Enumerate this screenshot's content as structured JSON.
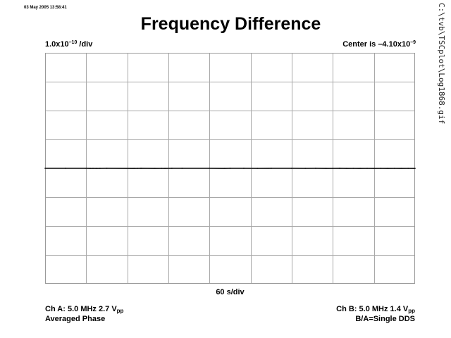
{
  "header": {
    "timestamp": "03 May 2005 13:58:41",
    "title": "Frequency Difference",
    "file_path": "C:\\tvb\\TSCplot\\Log1868.gif"
  },
  "scale": {
    "y_base": "1.0x10",
    "y_exp": "–10",
    "y_unit": " /div",
    "center_prefix": "Center is –4.10x10",
    "center_exp": "–9",
    "x_per_div": "60 s/div"
  },
  "footer": {
    "cha_prefix": "Ch A: 5.0 MHz 2.7 V",
    "cha_sub": "pp",
    "cha_note": "Averaged Phase",
    "chb_prefix": "Ch B: 5.0 MHz 1.4 V",
    "chb_sub": "pp",
    "chb_note": "B/A=Single DDS"
  },
  "chart_data": {
    "type": "line",
    "title": "Frequency Difference",
    "xlabel": "60 s/div",
    "ylabel": "1.0x10–10 /div",
    "x_divisions": 9,
    "y_divisions": 8,
    "x_per_div_seconds": 60,
    "xlim": [
      0,
      540
    ],
    "y_per_div": 1e-10,
    "y_center": -4.1e-09,
    "ylim": [
      -4.5e-09,
      -3.7e-09
    ],
    "grid": true,
    "series": [
      {
        "x": [
          0,
          30,
          60,
          66,
          70,
          75,
          80,
          90,
          130,
          135,
          140,
          160,
          170,
          175,
          185,
          200,
          240,
          262,
          270,
          290,
          310,
          330,
          360,
          380,
          395,
          410,
          420,
          430,
          440,
          450,
          460,
          470,
          480,
          490,
          500,
          510,
          520,
          530,
          540
        ],
        "values": [
          -4.1e-09,
          -4.1e-09,
          -4.1e-09,
          -4.1004e-09,
          -4.1003e-09,
          -4.1004e-09,
          -4.1003e-09,
          -4.1e-09,
          -4.1004e-09,
          -4.1003e-09,
          -4.1e-09,
          -4.1004e-09,
          -4.1003e-09,
          -4.1004e-09,
          -4.1e-09,
          -4.1e-09,
          -4.1e-09,
          -4.1004e-09,
          -4.1e-09,
          -4.1e-09,
          -4.1003e-09,
          -4.1e-09,
          -4.1e-09,
          -4.1003e-09,
          -4.1e-09,
          -4.1004e-09,
          -4.1003e-09,
          -4.1e-09,
          -4.1004e-09,
          -4.1003e-09,
          -4.1004e-09,
          -4.1003e-09,
          -4.1004e-09,
          -4.1003e-09,
          -4.1004e-09,
          -4.1003e-09,
          -4.1004e-09,
          -4.1003e-09,
          -4.1004e-09
        ]
      }
    ]
  }
}
